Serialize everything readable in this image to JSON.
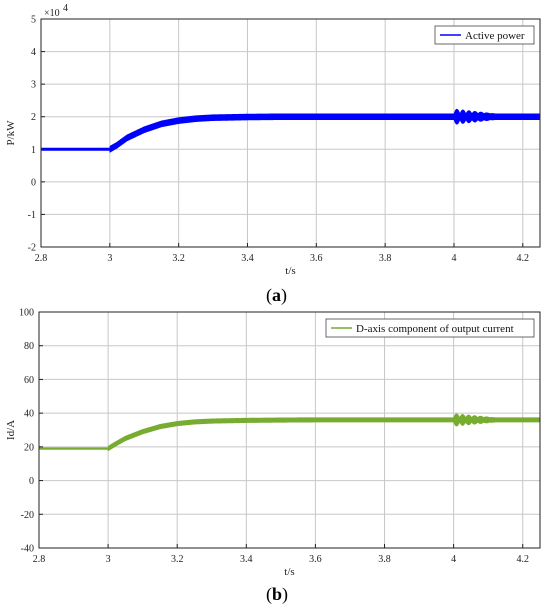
{
  "chart_data": [
    {
      "type": "line",
      "caption_letter": "a",
      "xlabel": "t/s",
      "ylabel": "P/kW",
      "exponent_label": "×10",
      "exponent_power": "4",
      "xlim": [
        2.8,
        4.25
      ],
      "ylim": [
        -2,
        5
      ],
      "xticks": [
        "2.8",
        "3",
        "3.2",
        "3.4",
        "3.6",
        "3.8",
        "4",
        "4.2"
      ],
      "xtick_values": [
        2.8,
        3.0,
        3.2,
        3.4,
        3.6,
        3.8,
        4.0,
        4.2
      ],
      "yticks": [
        "-2",
        "-1",
        "0",
        "1",
        "2",
        "3",
        "4",
        "5"
      ],
      "ytick_values": [
        -2,
        -1,
        0,
        1,
        2,
        3,
        4,
        5
      ],
      "grid": true,
      "legend_position": "top-right",
      "series": [
        {
          "name": "Active power",
          "color": "#0000ff",
          "x": [
            2.8,
            3.0,
            3.02,
            3.05,
            3.1,
            3.15,
            3.2,
            3.25,
            3.3,
            3.4,
            3.5,
            3.6,
            3.8,
            4.0,
            4.25
          ],
          "y": [
            1.0,
            1.0,
            1.12,
            1.35,
            1.6,
            1.78,
            1.88,
            1.94,
            1.97,
            1.99,
            2.0,
            2.0,
            2.0,
            2.0,
            2.0
          ],
          "ripple_amplitude": 0.1,
          "oscillation": {
            "start": 4.0,
            "end": 4.12,
            "amplitude": 0.15
          }
        }
      ]
    },
    {
      "type": "line",
      "caption_letter": "b",
      "xlabel": "t/s",
      "ylabel": "Id/A",
      "xlim": [
        2.8,
        4.25
      ],
      "ylim": [
        -40,
        100
      ],
      "xticks": [
        "2.8",
        "3",
        "3.2",
        "3.4",
        "3.6",
        "3.8",
        "4",
        "4.2"
      ],
      "xtick_values": [
        2.8,
        3.0,
        3.2,
        3.4,
        3.6,
        3.8,
        4.0,
        4.2
      ],
      "yticks": [
        "-40",
        "-20",
        "0",
        "20",
        "40",
        "60",
        "80",
        "100"
      ],
      "ytick_values": [
        -40,
        -20,
        0,
        20,
        40,
        60,
        80,
        100
      ],
      "grid": true,
      "legend_position": "top-right",
      "series": [
        {
          "name": "D-axis component of  output current",
          "color": "#77ac30",
          "x": [
            2.8,
            3.0,
            3.02,
            3.05,
            3.1,
            3.15,
            3.2,
            3.25,
            3.3,
            3.4,
            3.5,
            3.6,
            3.8,
            4.0,
            4.25
          ],
          "y": [
            19,
            19,
            21.5,
            25,
            29,
            32,
            33.8,
            34.8,
            35.3,
            35.7,
            35.9,
            36,
            36,
            36,
            36
          ],
          "ripple_amplitude": 1.5,
          "oscillation": {
            "start": 4.0,
            "end": 4.12,
            "amplitude": 2.5
          }
        }
      ]
    }
  ]
}
